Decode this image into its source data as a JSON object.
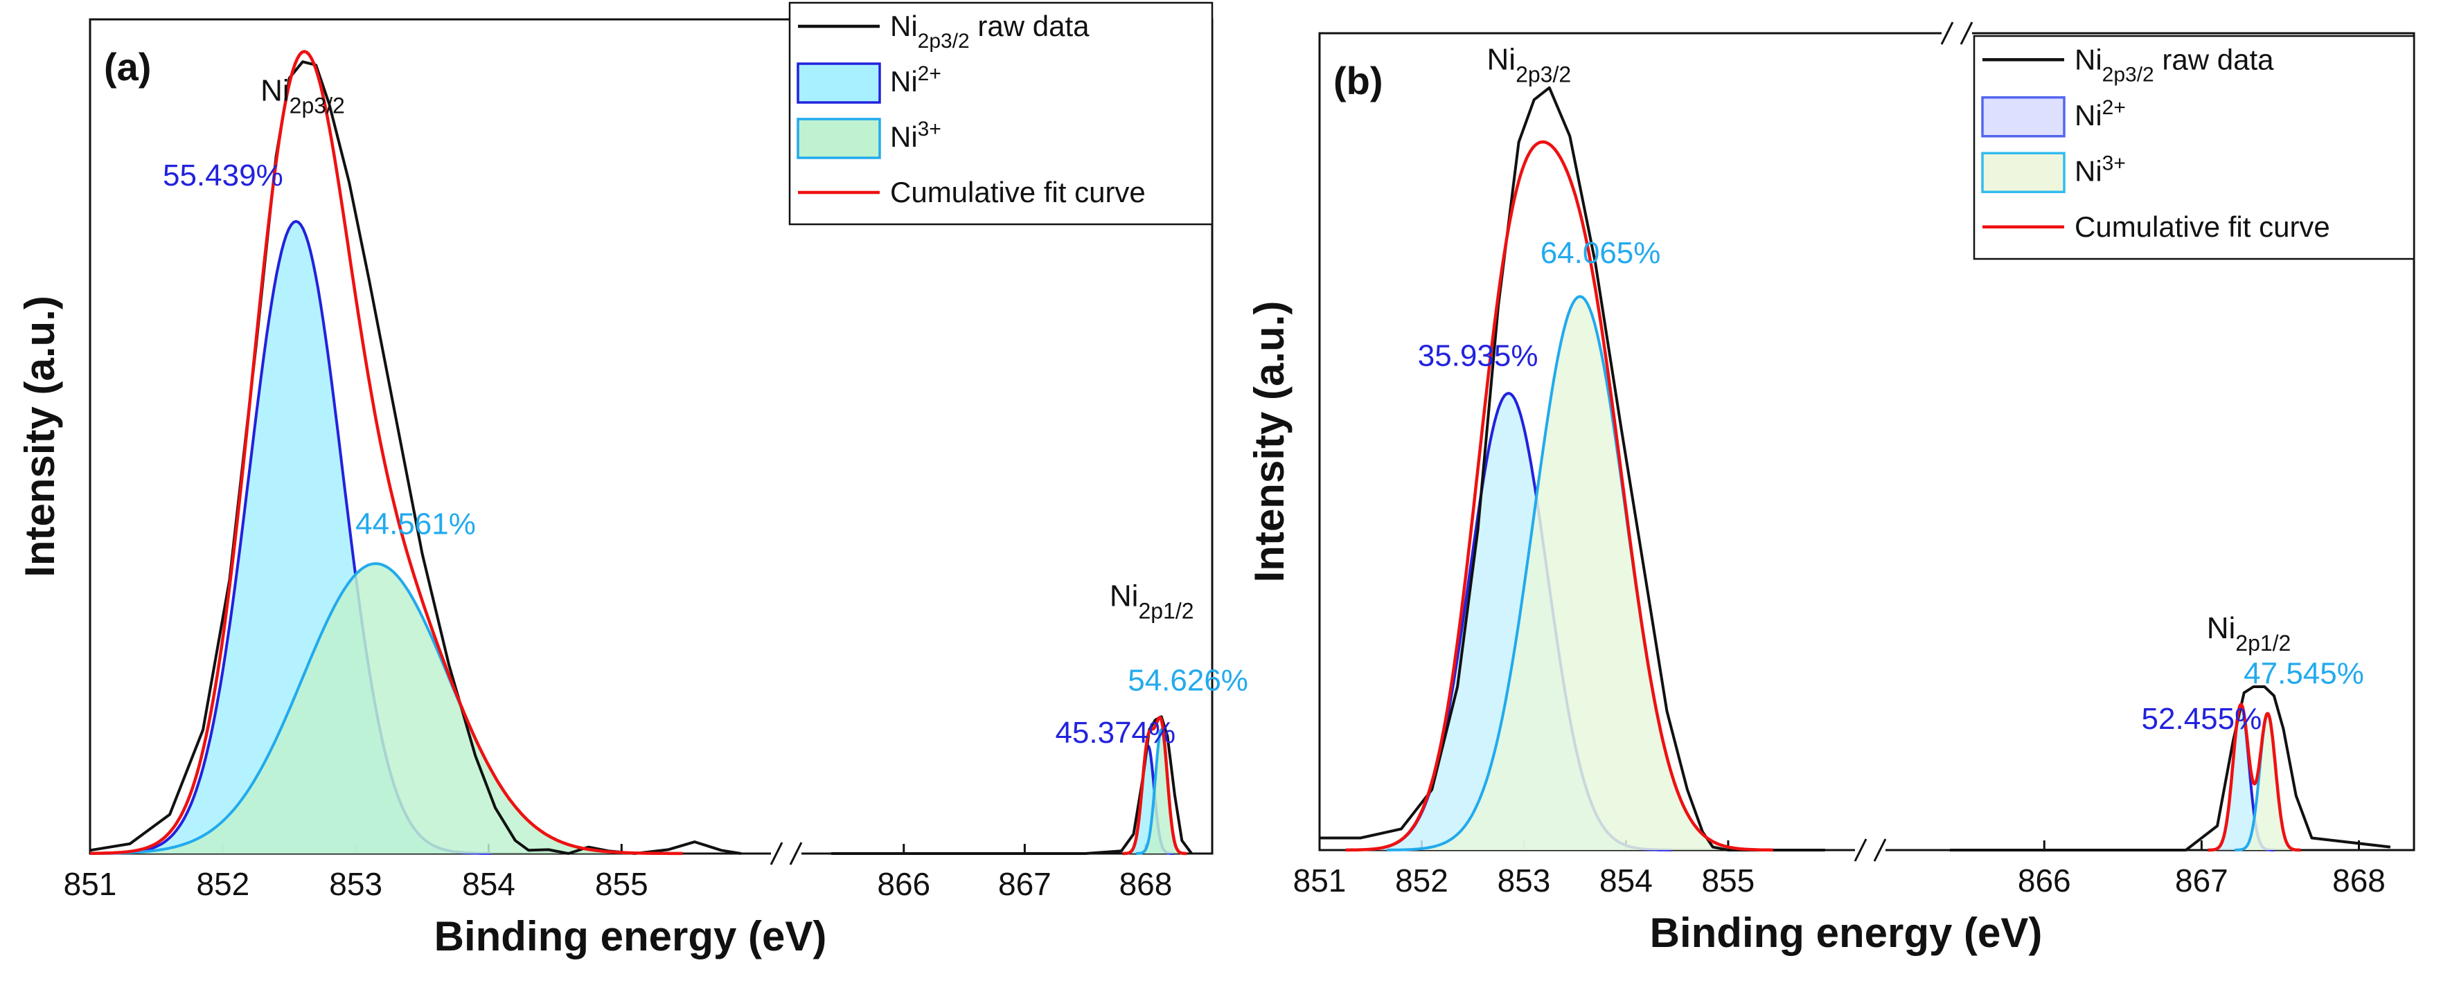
{
  "chart_data": [
    {
      "type": "line",
      "panel_label": "(a)",
      "xlabel": "Binding energy (eV)",
      "ylabel": "Intensity (a.u.)",
      "x_axis_break": true,
      "segments": [
        {
          "xlim": [
            851,
            855.9
          ],
          "ticks": [
            "851",
            "852",
            "853",
            "854",
            "855"
          ]
        },
        {
          "xlim": [
            865.4,
            868.55
          ],
          "ticks": [
            "866",
            "867",
            "868"
          ]
        }
      ],
      "ylim": [
        0,
        1.28
      ],
      "legend": {
        "position": "top-right",
        "entries": [
          {
            "label_main": "Ni",
            "label_sub": "2p3/2",
            "label_rest": " raw data",
            "kind": "line",
            "color": "#111111"
          },
          {
            "label_main": "Ni",
            "label_sup": "2+",
            "kind": "fill",
            "color": "#2222dd",
            "fill": "#a8f0ff"
          },
          {
            "label_main": "Ni",
            "label_sup": "3+",
            "kind": "fill",
            "color": "#22aaee",
            "fill": "#bff2d0"
          },
          {
            "label_main": "Cumulative fit curve",
            "kind": "line",
            "color": "#ee1111"
          }
        ]
      },
      "peak_labels": [
        {
          "main": "Ni",
          "sub": "2p3/2",
          "x": 852.6,
          "y": 1.155
        },
        {
          "main": "Ni",
          "sub": "2p1/2",
          "x": 868.05,
          "y": 0.38
        }
      ],
      "components": [
        {
          "name": "Ni2+ 2p3/2",
          "center": 852.55,
          "height": 0.97,
          "sigma": 0.35,
          "color": "#2222dd",
          "fill": "#a8f0ff",
          "area_label": "55.439%",
          "label_x": 852.0,
          "label_y": 1.025
        },
        {
          "name": "Ni3+ 2p3/2",
          "center": 853.15,
          "height": 0.445,
          "sigma": 0.55,
          "color": "#22aaee",
          "fill": "#bff2d0",
          "area_label": "44.561%",
          "label_x": 853.45,
          "label_y": 0.49
        },
        {
          "name": "Ni2+ 2p1/2",
          "center": 868.02,
          "height": 0.165,
          "sigma": 0.05,
          "color": "#2222dd",
          "fill": "#a8f0ff",
          "area_label": "45.374%",
          "label_x": 867.75,
          "label_y": 0.17
        },
        {
          "name": "Ni3+ 2p1/2",
          "center": 868.13,
          "height": 0.19,
          "sigma": 0.05,
          "color": "#22aaee",
          "fill": "#bff2d0",
          "area_label": "54.626%",
          "label_x": 868.35,
          "label_y": 0.25
        }
      ],
      "raw_data": {
        "x": [
          851.0,
          851.3,
          851.6,
          851.85,
          852.05,
          852.25,
          852.4,
          852.5,
          852.6,
          852.7,
          852.8,
          852.95,
          853.1,
          853.3,
          853.5,
          853.7,
          853.9,
          854.05,
          854.2,
          854.3,
          854.45,
          854.6,
          854.75,
          854.9,
          855.1,
          855.35,
          855.55,
          855.75,
          855.9,
          865.4,
          867.5,
          867.8,
          867.9,
          867.98,
          868.03,
          868.08,
          868.13,
          868.18,
          868.24,
          868.3,
          868.38
        ],
        "y": [
          0.005,
          0.015,
          0.06,
          0.19,
          0.42,
          0.78,
          1.07,
          1.19,
          1.215,
          1.21,
          1.15,
          1.03,
          0.88,
          0.67,
          0.46,
          0.29,
          0.15,
          0.07,
          0.02,
          0.005,
          0.006,
          0.0,
          0.01,
          0.004,
          0.0,
          0.006,
          0.018,
          0.005,
          0.0,
          0.0,
          0.0,
          0.004,
          0.03,
          0.12,
          0.19,
          0.205,
          0.21,
          0.18,
          0.09,
          0.02,
          0.0
        ]
      },
      "cumulative_fit": {
        "color": "#ee1111"
      }
    },
    {
      "type": "line",
      "panel_label": "(b)",
      "xlabel": "Binding energy (eV)",
      "ylabel": "Intensity (a.u.)",
      "x_axis_break": true,
      "segments": [
        {
          "xlim": [
            851,
            855.95
          ],
          "ticks": [
            "851",
            "852",
            "853",
            "854",
            "855"
          ]
        },
        {
          "xlim": [
            865.4,
            868.35
          ],
          "ticks": [
            "866",
            "867",
            "868"
          ]
        }
      ],
      "ylim": [
        0,
        1.35
      ],
      "legend": {
        "position": "top-right",
        "entries": [
          {
            "label_main": "Ni",
            "label_sub": "2p3/2",
            "label_rest": " raw data",
            "kind": "line",
            "color": "#111111"
          },
          {
            "label_main": "Ni",
            "label_sup": "2+",
            "kind": "fill",
            "color": "#5566ee",
            "fill": "#dde0ff"
          },
          {
            "label_main": "Ni",
            "label_sup": "3+",
            "kind": "fill",
            "color": "#33bbee",
            "fill": "#eef6dd"
          },
          {
            "label_main": "Cumulative fit curve",
            "kind": "line",
            "color": "#ee1111"
          }
        ]
      },
      "peak_labels": [
        {
          "main": "Ni",
          "sub": "2p3/2",
          "x": 853.05,
          "y": 1.29
        },
        {
          "main": "Ni",
          "sub": "2p1/2",
          "x": 867.3,
          "y": 0.35
        }
      ],
      "components": [
        {
          "name": "Ni2+ 2p3/2",
          "center": 852.85,
          "height": 0.755,
          "sigma": 0.38,
          "color": "#2222dd",
          "fill": "#c9f2ff",
          "area_label": "35.935%",
          "label_x": 852.55,
          "label_y": 0.8
        },
        {
          "name": "Ni3+ 2p3/2",
          "center": 853.55,
          "height": 0.915,
          "sigma": 0.45,
          "color": "#22aaee",
          "fill": "#e8f7dd",
          "area_label": "64.065%",
          "label_x": 853.75,
          "label_y": 0.97
        },
        {
          "name": "Ni2+ 2p1/2",
          "center": 867.25,
          "height": 0.24,
          "sigma": 0.05,
          "color": "#2222dd",
          "fill": "#c9f2ff",
          "area_label": "52.455%",
          "label_x": 867.0,
          "label_y": 0.2
        },
        {
          "name": "Ni3+ 2p1/2",
          "center": 867.42,
          "height": 0.225,
          "sigma": 0.05,
          "color": "#22aaee",
          "fill": "#e8f7dd",
          "area_label": "47.545%",
          "label_x": 867.65,
          "label_y": 0.275
        }
      ],
      "raw_data": {
        "x": [
          851.0,
          851.4,
          851.8,
          852.1,
          852.35,
          852.55,
          852.75,
          852.95,
          853.1,
          853.25,
          853.45,
          853.7,
          853.95,
          854.2,
          854.4,
          854.6,
          854.75,
          854.85,
          855.0,
          855.95,
          865.4,
          866.9,
          867.1,
          867.2,
          867.27,
          867.33,
          867.4,
          867.46,
          867.52,
          867.6,
          867.7,
          868.2
        ],
        "y": [
          0.02,
          0.02,
          0.035,
          0.1,
          0.27,
          0.53,
          0.9,
          1.17,
          1.24,
          1.26,
          1.18,
          0.97,
          0.7,
          0.44,
          0.23,
          0.1,
          0.03,
          0.005,
          0.0,
          0.0,
          0.0,
          0.0,
          0.04,
          0.18,
          0.26,
          0.27,
          0.27,
          0.255,
          0.2,
          0.09,
          0.02,
          0.005
        ]
      },
      "cumulative_fit": {
        "color": "#ee1111"
      }
    }
  ]
}
